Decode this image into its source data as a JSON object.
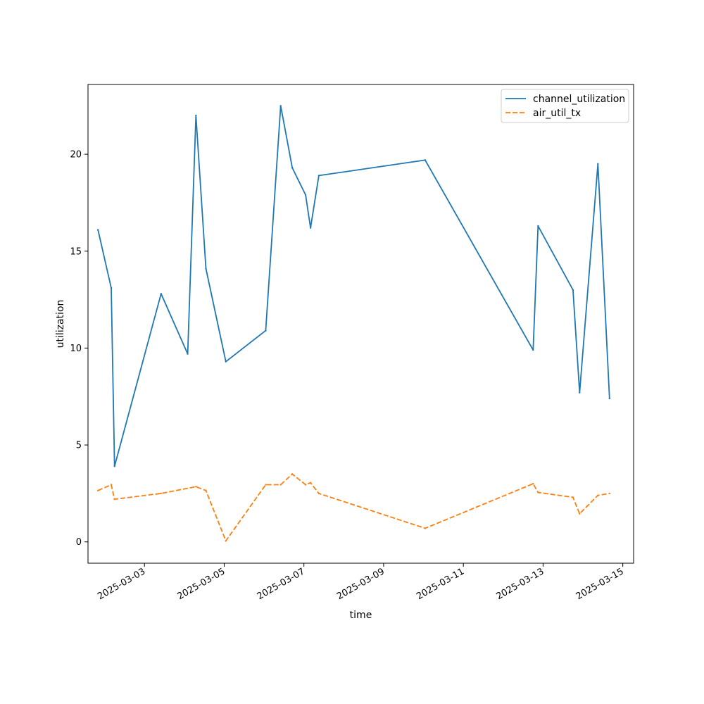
{
  "chart_data": {
    "type": "line",
    "title": "",
    "xlabel": "time",
    "ylabel": "utilization",
    "x_type": "datetime",
    "xlim": [
      "2025-03-01T14:00",
      "2025-03-15T06:30"
    ],
    "ylim": [
      -1.1,
      23.6
    ],
    "x_ticks": [
      "2025-03-03",
      "2025-03-05",
      "2025-03-07",
      "2025-03-09",
      "2025-03-11",
      "2025-03-13",
      "2025-03-15"
    ],
    "y_ticks": [
      0,
      5,
      10,
      15,
      20
    ],
    "legend_position": "top-right",
    "grid": false,
    "series": [
      {
        "name": "channel_utilization",
        "color": "#1f77b4",
        "dash": "solid",
        "points": [
          {
            "x": "2025-03-01T20:00",
            "y": 16.1
          },
          {
            "x": "2025-03-02T04:00",
            "y": 13.1
          },
          {
            "x": "2025-03-02T06:00",
            "y": 3.9
          },
          {
            "x": "2025-03-03T10:00",
            "y": 12.8
          },
          {
            "x": "2025-03-04T02:00",
            "y": 9.7
          },
          {
            "x": "2025-03-04T07:00",
            "y": 22.0
          },
          {
            "x": "2025-03-04T13:00",
            "y": 14.1
          },
          {
            "x": "2025-03-05T01:00",
            "y": 9.3
          },
          {
            "x": "2025-03-06T01:00",
            "y": 10.9
          },
          {
            "x": "2025-03-06T10:00",
            "y": 22.5
          },
          {
            "x": "2025-03-06T17:00",
            "y": 19.3
          },
          {
            "x": "2025-03-07T01:00",
            "y": 17.9
          },
          {
            "x": "2025-03-07T04:00",
            "y": 16.2
          },
          {
            "x": "2025-03-07T09:00",
            "y": 18.9
          },
          {
            "x": "2025-03-10T01:00",
            "y": 19.7
          },
          {
            "x": "2025-03-12T18:00",
            "y": 9.9
          },
          {
            "x": "2025-03-12T21:00",
            "y": 16.3
          },
          {
            "x": "2025-03-13T18:00",
            "y": 13.0
          },
          {
            "x": "2025-03-13T22:00",
            "y": 7.7
          },
          {
            "x": "2025-03-14T09:00",
            "y": 19.5
          },
          {
            "x": "2025-03-14T16:00",
            "y": 7.4
          }
        ]
      },
      {
        "name": "air_util_tx",
        "color": "#ff7f0e",
        "dash": "dashed",
        "points": [
          {
            "x": "2025-03-01T20:00",
            "y": 2.65
          },
          {
            "x": "2025-03-02T04:00",
            "y": 2.95
          },
          {
            "x": "2025-03-02T06:00",
            "y": 2.2
          },
          {
            "x": "2025-03-03T10:00",
            "y": 2.5
          },
          {
            "x": "2025-03-04T07:00",
            "y": 2.85
          },
          {
            "x": "2025-03-04T13:00",
            "y": 2.65
          },
          {
            "x": "2025-03-05T01:00",
            "y": 0.05
          },
          {
            "x": "2025-03-06T01:00",
            "y": 2.95
          },
          {
            "x": "2025-03-06T10:00",
            "y": 2.95
          },
          {
            "x": "2025-03-06T17:00",
            "y": 3.5
          },
          {
            "x": "2025-03-07T01:00",
            "y": 2.95
          },
          {
            "x": "2025-03-07T04:00",
            "y": 3.05
          },
          {
            "x": "2025-03-07T09:00",
            "y": 2.5
          },
          {
            "x": "2025-03-10T01:00",
            "y": 0.7
          },
          {
            "x": "2025-03-12T18:00",
            "y": 3.0
          },
          {
            "x": "2025-03-12T21:00",
            "y": 2.55
          },
          {
            "x": "2025-03-13T18:00",
            "y": 2.3
          },
          {
            "x": "2025-03-13T22:00",
            "y": 1.45
          },
          {
            "x": "2025-03-14T09:00",
            "y": 2.4
          },
          {
            "x": "2025-03-14T16:00",
            "y": 2.5
          }
        ]
      }
    ]
  }
}
